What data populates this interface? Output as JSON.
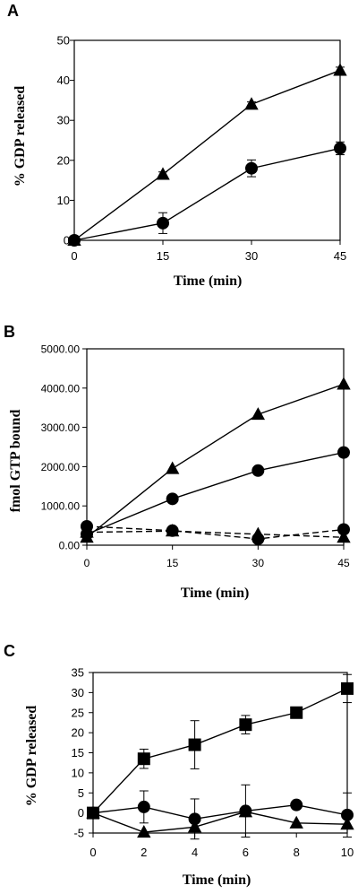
{
  "chart_data": [
    {
      "panel_letter": "A",
      "type": "line",
      "xlabel": "Time (min)",
      "ylabel": "% GDP released",
      "xlim": [
        0,
        45
      ],
      "ylim": [
        0,
        50
      ],
      "xticks": [
        "0",
        "15",
        "30",
        "45"
      ],
      "yticks": [
        "0",
        "10",
        "20",
        "30",
        "40",
        "50"
      ],
      "series": [
        {
          "marker": "triangle",
          "dash": "solid",
          "x": [
            0,
            15,
            30,
            45
          ],
          "y": [
            0,
            16.5,
            34,
            42.5
          ],
          "err": [
            0,
            0.6,
            0.6,
            0.8
          ]
        },
        {
          "marker": "circle",
          "dash": "solid",
          "x": [
            0,
            15,
            30,
            45
          ],
          "y": [
            0,
            4.3,
            18,
            23
          ],
          "err": [
            0,
            2.6,
            2.1,
            1.6
          ]
        }
      ]
    },
    {
      "panel_letter": "B",
      "type": "line",
      "xlabel": "Time (min)",
      "ylabel": "fmol GTP bound",
      "xlim": [
        0,
        45
      ],
      "ylim": [
        0,
        5000
      ],
      "xticks": [
        "0",
        "15",
        "30",
        "45"
      ],
      "yticks": [
        "0.00",
        "1000.00",
        "2000.00",
        "3000.00",
        "4000.00",
        "5000.00"
      ],
      "series": [
        {
          "marker": "triangle",
          "dash": "solid",
          "x": [
            0,
            15,
            30,
            45
          ],
          "y": [
            200,
            1950,
            3330,
            4100
          ],
          "err": []
        },
        {
          "marker": "circle",
          "dash": "solid",
          "x": [
            0,
            15,
            30,
            45
          ],
          "y": [
            280,
            1180,
            1900,
            2360
          ],
          "err": []
        },
        {
          "marker": "circle",
          "dash": "dashed",
          "x": [
            0,
            15,
            30,
            45
          ],
          "y": [
            480,
            370,
            160,
            400
          ],
          "err": []
        },
        {
          "marker": "triangle",
          "dash": "dashed",
          "x": [
            0,
            15,
            30,
            45
          ],
          "y": [
            330,
            360,
            280,
            200
          ],
          "err": []
        }
      ]
    },
    {
      "panel_letter": "C",
      "type": "line",
      "xlabel": "Time (min)",
      "ylabel": "% GDP released",
      "xlim": [
        0,
        10
      ],
      "ylim": [
        -5,
        35
      ],
      "xticks": [
        "0",
        "2",
        "4",
        "6",
        "8",
        "10"
      ],
      "yticks": [
        "-5",
        "0",
        "5",
        "10",
        "15",
        "20",
        "25",
        "30",
        "35"
      ],
      "series": [
        {
          "marker": "square",
          "dash": "solid",
          "x": [
            0,
            2,
            4,
            6,
            8,
            10
          ],
          "y": [
            0,
            13.5,
            17,
            22,
            25,
            31
          ],
          "err": [
            0,
            2.4,
            6,
            2.3,
            0.6,
            3.5
          ]
        },
        {
          "marker": "circle",
          "dash": "solid",
          "x": [
            0,
            2,
            4,
            6,
            8,
            10
          ],
          "y": [
            0,
            1.5,
            -1.5,
            0.5,
            2,
            -0.5
          ],
          "err": [
            0,
            4,
            5,
            6.5,
            0,
            5.5
          ]
        },
        {
          "marker": "triangle",
          "dash": "solid",
          "x": [
            0,
            2,
            4,
            6,
            8,
            10
          ],
          "y": [
            0,
            -4.8,
            -3.5,
            0.3,
            -2.5,
            -2.8
          ],
          "err": [
            0,
            0,
            0,
            0,
            0,
            0
          ]
        }
      ]
    }
  ]
}
